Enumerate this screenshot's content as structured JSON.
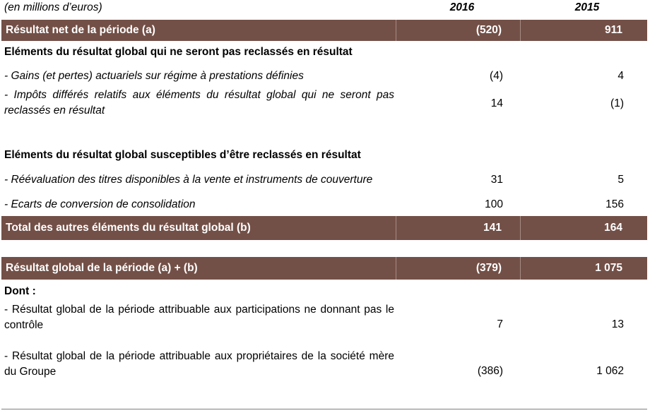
{
  "header": {
    "unit": "(en millions d’euros)",
    "col_2016": "2016",
    "col_2015": "2015"
  },
  "rows": {
    "net_result": {
      "label": "Résultat net de la période (a)",
      "v2016": "(520)",
      "v2015": "911"
    },
    "section_not_reclassified": {
      "label": "Eléments du résultat global qui ne seront pas reclassés en résultat"
    },
    "actuarial": {
      "label": "- Gains (et pertes) actuariels sur régime à prestations définies",
      "v2016": "(4)",
      "v2015": "4"
    },
    "deferred_tax": {
      "label": "- Impôts différés relatifs aux éléments du résultat global qui ne seront pas reclassés en résultat",
      "v2016": "14",
      "v2015": "(1)"
    },
    "section_reclassified": {
      "label": "Eléments du résultat global susceptibles d’être reclassés en résultat"
    },
    "revaluation": {
      "label": "- Réévaluation des titres disponibles à la vente et instruments de couverture",
      "v2016": "31",
      "v2015": "5"
    },
    "conversion": {
      "label": "- Ecarts de conversion de consolidation",
      "v2016": "100",
      "v2015": "156"
    },
    "total_other": {
      "label": "Total des autres éléments du résultat global (b)",
      "v2016": "141",
      "v2015": "164"
    },
    "global_result": {
      "label": "Résultat global de la période (a) + (b)",
      "v2016": "(379)",
      "v2015": "1 075"
    },
    "dont": {
      "label": "Dont :"
    },
    "non_controlling": {
      "label": "- Résultat global de la période attribuable aux participations ne donnant pas le contrôle",
      "v2016": "7",
      "v2015": "13"
    },
    "owners": {
      "label": "- Résultat global de la période attribuable aux propriétaires de la société mère du Groupe",
      "v2016": "(386)",
      "v2015": "1 062"
    }
  },
  "colors": {
    "band": "#735047",
    "band_text": "#ffffff"
  }
}
